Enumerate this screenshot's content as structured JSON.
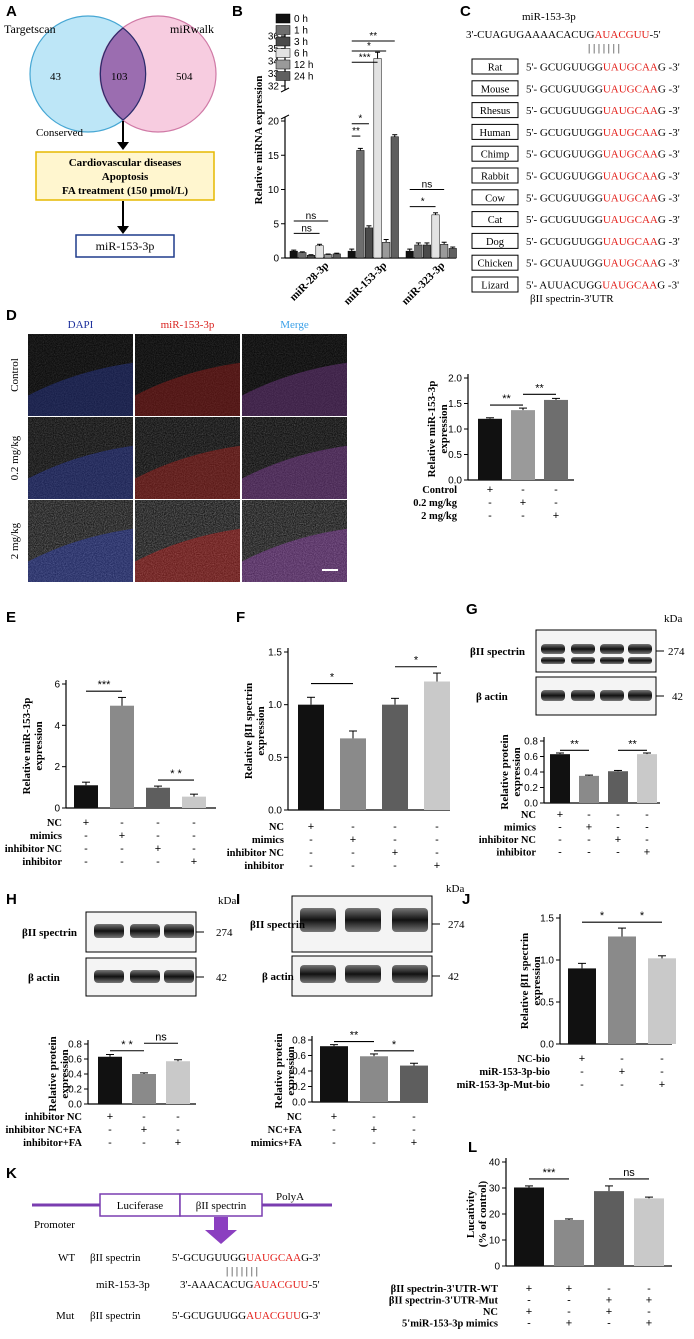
{
  "panel_letters": [
    "A",
    "B",
    "C",
    "D",
    "E",
    "F",
    "G",
    "H",
    "I",
    "J",
    "K",
    "L"
  ],
  "panelA": {
    "left_label": "Targetscan",
    "right_label": "miRwalk",
    "left_only": "43",
    "overlap": "103",
    "right_only": "504",
    "conserved_label": "Conserved",
    "criteria": [
      "Cardiovascular diseases",
      "Apoptosis",
      "FA treatment (150 µmol/L)"
    ],
    "result": "miR-153-3p",
    "colors": {
      "left": "#bde6f7",
      "right": "#f6c6dd",
      "overlap": "#9b6db0",
      "box": "#fff6cf",
      "box_border": "#e6b800",
      "result_border": "#1f3b8c"
    }
  },
  "panelC": {
    "title": "miR-153-3p",
    "mir_seq": {
      "prefix": "3'-CUAGUGAAAACACUG",
      "seed": "AUACGUU",
      "suffix": "-5'"
    },
    "pairing": "| | | | | | |",
    "species": [
      {
        "name": "Rat",
        "prefix": "5'- GCUGUUGG",
        "seed": "UAUGCAA",
        "suffix": "G -3'"
      },
      {
        "name": "Mouse",
        "prefix": "5'- GCUGUUGG",
        "seed": "UAUGCAA",
        "suffix": "G -3'"
      },
      {
        "name": "Rhesus",
        "prefix": "5'- GCUGUUGG",
        "seed": "UAUGCAA",
        "suffix": "G -3'"
      },
      {
        "name": "Human",
        "prefix": "5'- GCUGUUGG",
        "seed": "UAUGCAA",
        "suffix": "G -3'"
      },
      {
        "name": "Chimp",
        "prefix": "5'- GCUGUUGG",
        "seed": "UAUGCAA",
        "suffix": "G -3'"
      },
      {
        "name": "Rabbit",
        "prefix": "5'- GCUGUUGG",
        "seed": "UAUGCAA",
        "suffix": "G -3'"
      },
      {
        "name": "Cow",
        "prefix": "5'- GCUGUUGG",
        "seed": "UAUGCAA",
        "suffix": "G -3'"
      },
      {
        "name": "Cat",
        "prefix": "5'- GCUGUUGG",
        "seed": "UAUGCAA",
        "suffix": "G -3'"
      },
      {
        "name": "Dog",
        "prefix": "5'- GCUGUUGG",
        "seed": "UAUGCAA",
        "suffix": "G -3'"
      },
      {
        "name": "Chicken",
        "prefix": "5'- GCUAUUGG",
        "seed": "UAUGCAA",
        "suffix": "G -3'"
      },
      {
        "name": "Lizard",
        "prefix": "5'- AUUACUGG",
        "seed": "UAUGCAA",
        "suffix": "G -3'"
      }
    ],
    "footer": "βII spectrin-3'UTR"
  },
  "panelD_images": {
    "columns": [
      "DAPI",
      "miR-153-3p",
      "Merge"
    ],
    "rows": [
      "Control",
      "0.2 mg/kg",
      "2 mg/kg"
    ],
    "colors": {
      "dapi": "#3346c9",
      "mir": "#d9231f",
      "merge": "#a34cc2",
      "text_dapi": "#1c2f9c",
      "text_mir": "#d9231f",
      "text_merge": "#3aa0e8"
    }
  },
  "panelK": {
    "promoter": "Promoter",
    "luciferase": "Luciferase",
    "spectrin": "βII spectrin",
    "polya": "PolyA",
    "wt_label": "WT",
    "mut_label": "Mut",
    "gene": "βII spectrin",
    "mir": "miR-153-3p",
    "wt_seq": {
      "prefix": "5'-GCUGUUGG",
      "seed": "UAUGCAA",
      "suffix": "G-3'"
    },
    "mir_seq": {
      "prefix": "3'-AAACACUG",
      "seed": "AUACGUU",
      "suffix": "-5'"
    },
    "mut_seq": {
      "prefix": "5'-GCUGUUGG",
      "seed": "AUACGUU",
      "suffix": "G-3'"
    },
    "pairing": "| | | | | | |"
  },
  "western": {
    "spectrin": "βII spectrin",
    "actin": "β actin",
    "kda": "kDa",
    "mw_spectrin": "274",
    "mw_actin": "42"
  },
  "chart_data": [
    {
      "id": "B",
      "type": "bar",
      "ylabel": "Relative miRNA expression",
      "categories": [
        "miR-28-3p",
        "miR-153-3p",
        "miR-323-3p"
      ],
      "legend": [
        "0 h",
        "1 h",
        "3 h",
        "6 h",
        "12 h",
        "24 h"
      ],
      "series_colors": [
        "#111111",
        "#6e6e6e",
        "#4a4a4a",
        "#e2e2e2",
        "#9a9a9a",
        "#5f5f5f"
      ],
      "values": [
        [
          1.0,
          0.8,
          0.4,
          1.8,
          0.5,
          0.6
        ],
        [
          1.0,
          15.7,
          4.4,
          34.2,
          2.3,
          17.7
        ],
        [
          1.0,
          1.9,
          1.9,
          6.3,
          2.0,
          1.4
        ]
      ],
      "errors": [
        [
          0.15,
          0.1,
          0.08,
          0.2,
          0.08,
          0.1
        ],
        [
          0.3,
          0.3,
          0.3,
          0.5,
          0.4,
          0.3
        ],
        [
          0.3,
          0.3,
          0.3,
          0.3,
          0.3,
          0.2
        ]
      ],
      "y_ticks": [
        "0",
        "5",
        "10",
        "15",
        "20",
        "32",
        "33",
        "34",
        "35",
        "36"
      ],
      "broken_axis": [
        20,
        32
      ],
      "significance": [
        "ns",
        "ns",
        "**",
        "*",
        "***",
        "*",
        "**",
        "*",
        "ns"
      ]
    },
    {
      "id": "D",
      "type": "bar",
      "ylabel": "Relative miR-153-3p expression",
      "values": [
        1.2,
        1.37,
        1.57
      ],
      "errors": [
        0.02,
        0.04,
        0.03
      ],
      "colors": [
        "#111111",
        "#9a9a9a",
        "#6e6e6e"
      ],
      "y_ticks": [
        "0.0",
        "0.5",
        "1.0",
        "1.5",
        "2.0"
      ],
      "ylim": [
        0,
        2.0
      ],
      "conditions": [
        {
          "label": "Control",
          "marks": [
            "+",
            "-",
            "-"
          ]
        },
        {
          "label": "0.2 mg/kg",
          "marks": [
            "-",
            "+",
            "-"
          ]
        },
        {
          "label": "2 mg/kg",
          "marks": [
            "-",
            "-",
            "+"
          ]
        }
      ],
      "significance": [
        "**",
        "**"
      ]
    },
    {
      "id": "E",
      "type": "bar",
      "ylabel": "Relative miR-153-3p expression",
      "values": [
        1.1,
        4.95,
        0.98,
        0.55
      ],
      "errors": [
        0.15,
        0.4,
        0.08,
        0.12
      ],
      "colors": [
        "#111111",
        "#8a8a8a",
        "#5e5e5e",
        "#c9c9c9"
      ],
      "y_ticks": [
        "0",
        "2",
        "4",
        "6"
      ],
      "ylim": [
        0,
        6
      ],
      "conditions": [
        {
          "label": "NC",
          "marks": [
            "+",
            "-",
            "-",
            "-"
          ]
        },
        {
          "label": "mimics",
          "marks": [
            "-",
            "+",
            "-",
            "-"
          ]
        },
        {
          "label": "inhibitor NC",
          "marks": [
            "-",
            "-",
            "+",
            "-"
          ]
        },
        {
          "label": "inhibitor",
          "marks": [
            "-",
            "-",
            "-",
            "+"
          ]
        }
      ],
      "significance": [
        "***",
        "* *"
      ]
    },
    {
      "id": "F",
      "type": "bar",
      "ylabel": "Relative βII spectrin expression",
      "values": [
        1.0,
        0.68,
        1.0,
        1.22
      ],
      "errors": [
        0.07,
        0.07,
        0.06,
        0.08
      ],
      "colors": [
        "#111111",
        "#8a8a8a",
        "#5e5e5e",
        "#c9c9c9"
      ],
      "y_ticks": [
        "0.0",
        "0.5",
        "1.0",
        "1.5"
      ],
      "ylim": [
        0,
        1.5
      ],
      "conditions": [
        {
          "label": "NC",
          "marks": [
            "+",
            "-",
            "-",
            "-"
          ]
        },
        {
          "label": "mimics",
          "marks": [
            "-",
            "+",
            "-",
            "-"
          ]
        },
        {
          "label": "inhibitor NC",
          "marks": [
            "-",
            "-",
            "+",
            "-"
          ]
        },
        {
          "label": "inhibitor",
          "marks": [
            "-",
            "-",
            "-",
            "+"
          ]
        }
      ],
      "significance": [
        "*",
        "*"
      ]
    },
    {
      "id": "G",
      "type": "bar",
      "ylabel": "Relative protein expression",
      "values": [
        0.63,
        0.35,
        0.41,
        0.63
      ],
      "errors": [
        0.015,
        0.01,
        0.01,
        0.015
      ],
      "colors": [
        "#111111",
        "#8a8a8a",
        "#5e5e5e",
        "#c9c9c9"
      ],
      "y_ticks": [
        "0.0",
        "0.2",
        "0.4",
        "0.6",
        "0.8"
      ],
      "ylim": [
        0,
        0.8
      ],
      "conditions": [
        {
          "label": "NC",
          "marks": [
            "+",
            "-",
            "-",
            "-"
          ]
        },
        {
          "label": "mimics",
          "marks": [
            "-",
            "+",
            "-",
            "-"
          ]
        },
        {
          "label": "inhibitor NC",
          "marks": [
            "-",
            "-",
            "+",
            "-"
          ]
        },
        {
          "label": "inhibitor",
          "marks": [
            "-",
            "-",
            "-",
            "+"
          ]
        }
      ],
      "significance": [
        "**",
        "**"
      ]
    },
    {
      "id": "H",
      "type": "bar",
      "ylabel": "Relative protein expression",
      "values": [
        0.63,
        0.4,
        0.57
      ],
      "errors": [
        0.03,
        0.015,
        0.02
      ],
      "colors": [
        "#111111",
        "#8a8a8a",
        "#c9c9c9"
      ],
      "y_ticks": [
        "0.0",
        "0.2",
        "0.4",
        "0.6",
        "0.8"
      ],
      "ylim": [
        0,
        0.8
      ],
      "conditions": [
        {
          "label": "inhibitor NC",
          "marks": [
            "+",
            "-",
            "-"
          ]
        },
        {
          "label": "inhibitor NC+FA",
          "marks": [
            "-",
            "+",
            "-"
          ]
        },
        {
          "label": "inhibitor+FA",
          "marks": [
            "-",
            "-",
            "+"
          ]
        }
      ],
      "significance": [
        "* *",
        "ns"
      ]
    },
    {
      "id": "I",
      "type": "bar",
      "ylabel": "Relative protein expression",
      "values": [
        0.72,
        0.59,
        0.47
      ],
      "errors": [
        0.02,
        0.03,
        0.03
      ],
      "colors": [
        "#111111",
        "#8a8a8a",
        "#5e5e5e"
      ],
      "y_ticks": [
        "0.0",
        "0.2",
        "0.4",
        "0.6",
        "0.8"
      ],
      "ylim": [
        0,
        0.8
      ],
      "conditions": [
        {
          "label": "NC",
          "marks": [
            "+",
            "-",
            "-"
          ]
        },
        {
          "label": "NC+FA",
          "marks": [
            "-",
            "+",
            "-"
          ]
        },
        {
          "label": "mimics+FA",
          "marks": [
            "-",
            "-",
            "+"
          ]
        }
      ],
      "significance": [
        "**",
        "*"
      ]
    },
    {
      "id": "J",
      "type": "bar",
      "ylabel": "Relative βII spectrin expression",
      "values": [
        0.9,
        1.28,
        1.02
      ],
      "errors": [
        0.06,
        0.1,
        0.03
      ],
      "colors": [
        "#111111",
        "#8a8a8a",
        "#c9c9c9"
      ],
      "y_ticks": [
        "0.0",
        "0.5",
        "1.0",
        "1.5"
      ],
      "ylim": [
        0,
        1.5
      ],
      "conditions": [
        {
          "label": "NC-bio",
          "marks": [
            "+",
            "-",
            "-"
          ]
        },
        {
          "label": "miR-153-3p-bio",
          "marks": [
            "-",
            "+",
            "-"
          ]
        },
        {
          "label": "miR-153-3p-Mut-bio",
          "marks": [
            "-",
            "-",
            "+"
          ]
        }
      ],
      "significance": [
        "*",
        "*"
      ]
    },
    {
      "id": "L",
      "type": "bar",
      "ylabel": "Lucativity (% of control)",
      "values": [
        30.2,
        17.7,
        28.8,
        26.0
      ],
      "errors": [
        0.6,
        0.4,
        2.0,
        0.5
      ],
      "colors": [
        "#111111",
        "#8a8a8a",
        "#5e5e5e",
        "#c9c9c9"
      ],
      "y_ticks": [
        "0",
        "10",
        "20",
        "30",
        "40"
      ],
      "ylim": [
        0,
        40
      ],
      "conditions": [
        {
          "label": "βII spectrin-3'UTR-WT",
          "marks": [
            "+",
            "+",
            "-",
            "-"
          ]
        },
        {
          "label": "βII spectrin-3'UTR-Mut",
          "marks": [
            "-",
            "-",
            "+",
            "+"
          ]
        },
        {
          "label": "NC",
          "marks": [
            "+",
            "-",
            "+",
            "-"
          ]
        },
        {
          "label": "5'miR-153-3p mimics",
          "marks": [
            "-",
            "+",
            "-",
            "+"
          ]
        }
      ],
      "significance": [
        "***",
        "ns"
      ]
    }
  ]
}
